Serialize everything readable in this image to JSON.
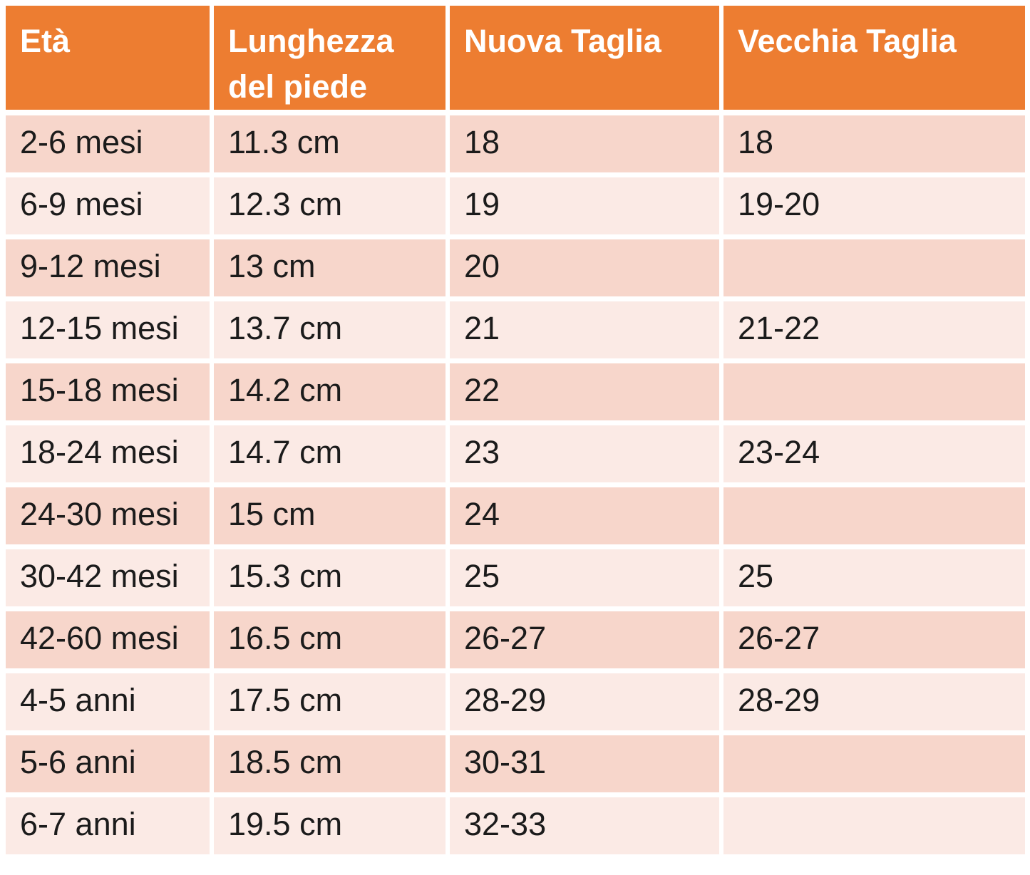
{
  "table": {
    "columns": [
      {
        "key": "age",
        "label": "Età"
      },
      {
        "key": "foot_length",
        "label": "Lunghezza del piede"
      },
      {
        "key": "new_size",
        "label": "Nuova Taglia"
      },
      {
        "key": "old_size",
        "label": "Vecchia Taglia"
      }
    ],
    "rows": [
      {
        "age": "2-6 mesi",
        "foot_length": "11.3 cm",
        "new_size": "18",
        "old_size": "18"
      },
      {
        "age": "6-9 mesi",
        "foot_length": "12.3 cm",
        "new_size": "19",
        "old_size": "19-20"
      },
      {
        "age": "9-12 mesi",
        "foot_length": "13 cm",
        "new_size": "20",
        "old_size": ""
      },
      {
        "age": "12-15 mesi",
        "foot_length": "13.7 cm",
        "new_size": "21",
        "old_size": "21-22"
      },
      {
        "age": "15-18 mesi",
        "foot_length": "14.2 cm",
        "new_size": "22",
        "old_size": ""
      },
      {
        "age": "18-24 mesi",
        "foot_length": "14.7 cm",
        "new_size": "23",
        "old_size": "23-24"
      },
      {
        "age": "24-30 mesi",
        "foot_length": "15 cm",
        "new_size": "24",
        "old_size": ""
      },
      {
        "age": "30-42 mesi",
        "foot_length": "15.3 cm",
        "new_size": "25",
        "old_size": "25"
      },
      {
        "age": "42-60 mesi",
        "foot_length": "16.5 cm",
        "new_size": "26-27",
        "old_size": "26-27"
      },
      {
        "age": "4-5 anni",
        "foot_length": "17.5 cm",
        "new_size": "28-29",
        "old_size": "28-29"
      },
      {
        "age": "5-6 anni",
        "foot_length": "18.5 cm",
        "new_size": "30-31",
        "old_size": ""
      },
      {
        "age": "6-7 anni",
        "foot_length": "19.5 cm",
        "new_size": "32-33",
        "old_size": ""
      }
    ]
  },
  "colors": {
    "header_bg": "#ED7D31",
    "header_text": "#FFFFFF",
    "row_band_dark": "#F7D6CB",
    "row_band_light": "#FBEAE5",
    "divider": "#FFFFFF",
    "body_text": "#1B1B1B",
    "page_bg": "#FFFFFF"
  }
}
